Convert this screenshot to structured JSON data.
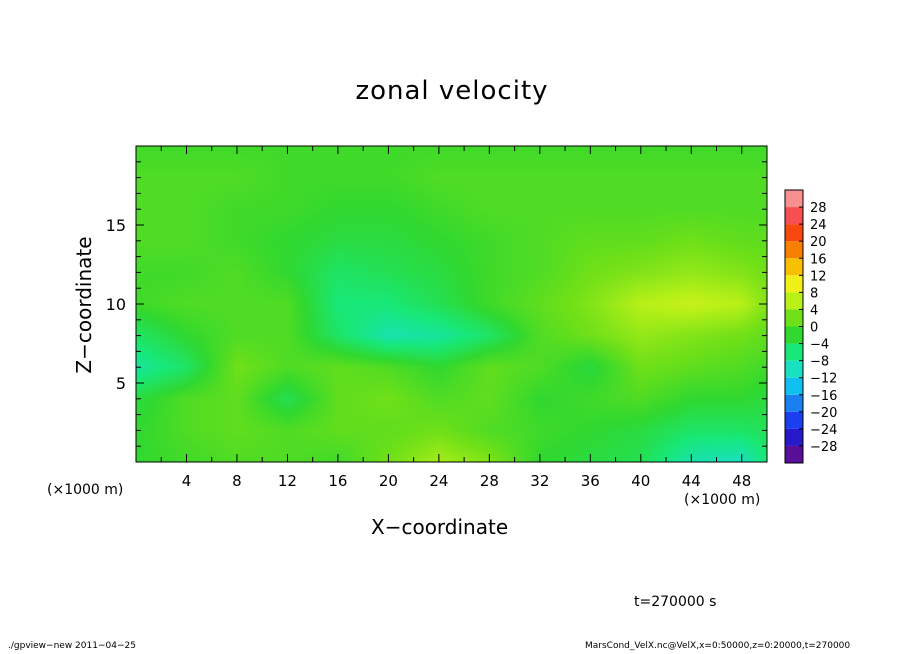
{
  "header": {
    "title": "zonal velocity"
  },
  "axes": {
    "xlabel": "X−coordinate",
    "ylabel": "Z−coordinate",
    "x_unit_left": "(×1000 m)",
    "x_unit_right": "(×1000 m)"
  },
  "annotation": {
    "time": "t=270000 s"
  },
  "footer": {
    "left": "./gpview−new   2011−04−25",
    "right": "MarsCond_VelX.nc@VelX,x=0:50000,z=0:20000,t=270000"
  },
  "chart_data": {
    "type": "heatmap",
    "title": "zonal velocity",
    "xlabel": "X−coordinate",
    "ylabel": "Z−coordinate",
    "x_unit": "×1000 m",
    "xlim": [
      0,
      50
    ],
    "ylim": [
      0,
      20
    ],
    "x_ticks": [
      4,
      8,
      12,
      16,
      20,
      24,
      28,
      32,
      36,
      40,
      44,
      48
    ],
    "y_ticks": [
      5,
      10,
      15
    ],
    "grid": false,
    "colorbar": {
      "levels": [
        -32,
        -28,
        -24,
        -20,
        -16,
        -12,
        -8,
        -4,
        0,
        4,
        8,
        12,
        16,
        20,
        24,
        28,
        32
      ],
      "tick_labels": [
        "28",
        "24",
        "20",
        "16",
        "12",
        "8",
        "4",
        "0",
        "−4",
        "−8",
        "−12",
        "−16",
        "−20",
        "−24",
        "−28"
      ],
      "colors": [
        "#5a0f98",
        "#2818c8",
        "#1a3ef0",
        "#1a80f0",
        "#10c0f0",
        "#18e0c0",
        "#18e878",
        "#30d830",
        "#70e018",
        "#b8f018",
        "#f0f018",
        "#f8c000",
        "#f88000",
        "#f84810",
        "#f85050",
        "#f89090"
      ],
      "placement": "right"
    },
    "field": {
      "x": [
        0,
        4,
        8,
        12,
        16,
        20,
        24,
        28,
        32,
        36,
        40,
        44,
        48,
        50
      ],
      "y": [
        0,
        2,
        4,
        6,
        8,
        10,
        12,
        14,
        16,
        18,
        20
      ],
      "values": [
        [
          -2,
          -1,
          0,
          0,
          -1,
          2,
          5,
          3,
          -2,
          -3,
          -4,
          -9,
          -10,
          -6
        ],
        [
          -2,
          0,
          1,
          0,
          1,
          1,
          2,
          0,
          -1,
          -2,
          -3,
          -5,
          -5,
          -4
        ],
        [
          -3,
          0,
          1,
          -4,
          1,
          2,
          0,
          1,
          -2,
          -1,
          0,
          -2,
          -2,
          -3
        ],
        [
          -8,
          -5,
          2,
          0,
          1,
          0,
          -2,
          1,
          0,
          -3,
          2,
          1,
          0,
          -1
        ],
        [
          -5,
          -2,
          0,
          0,
          -5,
          -9,
          -8,
          -5,
          0,
          2,
          4,
          3,
          2,
          1
        ],
        [
          -1,
          0,
          0,
          0,
          -6,
          -6,
          -4,
          -1,
          1,
          3,
          6,
          7,
          6,
          3
        ],
        [
          -1,
          -1,
          0,
          -2,
          -5,
          -4,
          -3,
          -1,
          0,
          2,
          3,
          4,
          3,
          2
        ],
        [
          0,
          0,
          -1,
          -2,
          -3,
          -3,
          -2,
          -1,
          0,
          1,
          1,
          2,
          1,
          1
        ],
        [
          0,
          0,
          -1,
          -1,
          -2,
          -2,
          -1,
          0,
          0,
          0,
          0,
          0,
          0,
          0
        ],
        [
          0,
          0,
          0,
          -1,
          -1,
          -1,
          0,
          0,
          0,
          0,
          0,
          0,
          0,
          0
        ],
        [
          -1,
          -1,
          -1,
          -1,
          -1,
          -1,
          -1,
          -1,
          -1,
          -1,
          -1,
          -1,
          -1,
          -1
        ]
      ]
    }
  }
}
